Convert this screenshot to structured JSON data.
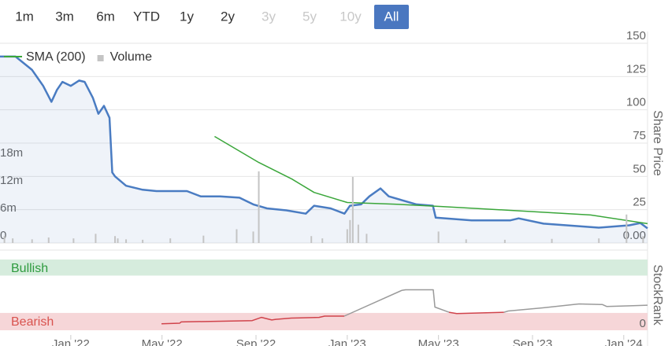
{
  "buttons": [
    {
      "label": "1m",
      "enabled": true
    },
    {
      "label": "3m",
      "enabled": true
    },
    {
      "label": "6m",
      "enabled": true
    },
    {
      "label": "YTD",
      "enabled": true
    },
    {
      "label": "1y",
      "enabled": true
    },
    {
      "label": "2y",
      "enabled": true
    },
    {
      "label": "3y",
      "enabled": false
    },
    {
      "label": "5y",
      "enabled": false
    },
    {
      "label": "10y",
      "enabled": false
    },
    {
      "label": "All",
      "enabled": true,
      "active": true
    }
  ],
  "chart_data": [
    {
      "type": "line",
      "y_label": "Share Price",
      "grid": true,
      "xlim": [
        2021.744,
        2024.086
      ],
      "ylim": [
        0,
        150
      ],
      "yticks": [
        {
          "value": 0,
          "label": "0.00"
        },
        25,
        50,
        75,
        100,
        125,
        150
      ],
      "y2lim": [
        0,
        43500000
      ],
      "y2ticks": [
        0,
        {
          "value": 6000000,
          "label": "6m"
        },
        {
          "value": 12000000,
          "label": "12m"
        },
        {
          "value": 18000000,
          "label": "18m"
        }
      ],
      "series": [
        {
          "color": "#4a7cc2",
          "area": true,
          "x": [
            2021.744,
            2021.8,
            2021.83,
            2021.86,
            2021.88,
            2021.9,
            2021.93,
            2021.95,
            2021.97,
            2022.0,
            2022.03,
            2022.05,
            2022.08,
            2022.1,
            2022.12,
            2022.14,
            2022.15,
            2022.16,
            2022.2,
            2022.26,
            2022.31,
            2022.42,
            2022.47,
            2022.54,
            2022.61,
            2022.66,
            2022.71,
            2022.78,
            2022.85,
            2022.88,
            2022.94,
            2022.99,
            2023.01,
            2023.05,
            2023.08,
            2023.12,
            2023.15,
            2023.2,
            2023.25,
            2023.31,
            2023.32,
            2023.45,
            2023.59,
            2023.62,
            2023.71,
            2023.91,
            2024.02,
            2024.06,
            2024.086
          ],
          "values": [
            140,
            140,
            135,
            130,
            124,
            118,
            106,
            115,
            121,
            118,
            122,
            121,
            109,
            97,
            103,
            94,
            53,
            50,
            43,
            40,
            39,
            39,
            35,
            35,
            34,
            29,
            26,
            24.5,
            22,
            28,
            26,
            22,
            28,
            29,
            35,
            41,
            35,
            32,
            29,
            28,
            19,
            17,
            17,
            18.5,
            14.5,
            11.5,
            13.3,
            15,
            11
          ]
        },
        {
          "name": "SMA (200)",
          "color": "#3aa63a",
          "x": [
            2022.52,
            2022.68,
            2022.8,
            2022.88,
            2023.0,
            2023.17,
            2023.34,
            2023.59,
            2023.88,
            2024.086
          ],
          "values": [
            80,
            60.5,
            48,
            38,
            30.4,
            29.2,
            27.4,
            24.5,
            21,
            14.5
          ]
        },
        {
          "name": "Volume",
          "type": "bar",
          "axis": "y2",
          "color": "#c4c4c4",
          "x": [
            2021.76,
            2021.79,
            2021.86,
            2021.92,
            2022.01,
            2022.09,
            2022.16,
            2022.17,
            2022.2,
            2022.26,
            2022.36,
            2022.48,
            2022.6,
            2022.66,
            2022.68,
            2022.87,
            2022.91,
            2023.0,
            2023.01,
            2023.02,
            2023.04,
            2023.07,
            2023.33,
            2023.43,
            2023.57,
            2023.74,
            2023.91,
            2024.01,
            2024.07
          ],
          "values": [
            1500000,
            1000000,
            800000,
            1200000,
            1000000,
            2000000,
            1500000,
            1000000,
            800000,
            700000,
            1000000,
            1600000,
            3000000,
            2500000,
            15600000,
            1500000,
            1000000,
            3000000,
            5000000,
            14400000,
            4000000,
            2000000,
            2500000,
            800000,
            700000,
            900000,
            1000000,
            6200000,
            1500000
          ]
        }
      ]
    },
    {
      "type": "line",
      "y_label": "StockRank",
      "xlim": [
        2021.744,
        2024.086
      ],
      "ylim": [
        -10,
        100
      ],
      "yticks": [
        0
      ],
      "xticks": [
        {
          "value": 2022.0,
          "label": "Jan '22"
        },
        {
          "value": 2022.33,
          "label": "May '22"
        },
        {
          "value": 2022.67,
          "label": "Sep '22"
        },
        {
          "value": 2023.0,
          "label": "Jan '23"
        },
        {
          "value": 2023.33,
          "label": "May '23"
        },
        {
          "value": 2023.67,
          "label": "Sep '23"
        },
        {
          "value": 2024.0,
          "label": "Jan '24"
        }
      ],
      "bands": [
        {
          "label": "Bullish",
          "from": 75,
          "to": 100,
          "color": "#d6ecdd",
          "text_color": "#2e9b3e"
        },
        {
          "label": "Bearish",
          "from": -10,
          "to": 17,
          "color": "#f6d6d8",
          "text_color": "#d9534f"
        }
      ],
      "x": [
        2022.328,
        2022.394,
        2022.399,
        2022.656,
        2022.69,
        2022.727,
        2022.741,
        2022.798,
        2022.898,
        2022.918,
        2022.989,
        2023.197,
        2023.211,
        2023.311,
        2023.317,
        2023.368,
        2023.396,
        2023.567,
        2023.582,
        2023.71,
        2023.838,
        2023.923,
        2023.938,
        2024.023,
        2024.086
      ],
      "series": [
        {
          "color": "#d0434b",
          "values": [
            0,
            1,
            3,
            5,
            10,
            6,
            7,
            9,
            10,
            12,
            12,
            null,
            null,
            null,
            null,
            18,
            16,
            18,
            null,
            null,
            null,
            null,
            null,
            null,
            null
          ]
        },
        {
          "color": "#9a9a9a",
          "values": [
            null,
            null,
            null,
            null,
            null,
            null,
            null,
            null,
            null,
            null,
            12,
            52,
            53,
            53,
            26,
            18,
            null,
            18,
            20,
            25,
            31,
            30,
            27,
            28,
            29
          ]
        }
      ]
    }
  ]
}
